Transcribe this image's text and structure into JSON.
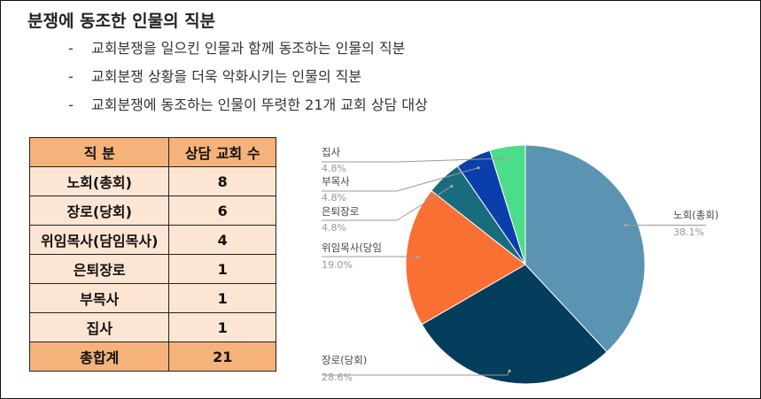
{
  "title": "분쟁에 동조한 인물의 직분",
  "bullets": [
    {
      "marker": "-",
      "text": "교회분쟁을 일으킨 인물과 함께 동조하는 인물의 직분"
    },
    {
      "marker": "-",
      "text": "교회분쟁 상황을 더욱 악화시키는 인물의 직분"
    },
    {
      "marker": "-",
      "text": "교회분쟁에 동조하는 인물이 뚜렷한 21개 교회 상담 대상"
    }
  ],
  "table": {
    "headers": [
      "직 분",
      "상담 교회 수"
    ],
    "rows": [
      [
        "노회(총회)",
        "8"
      ],
      [
        "장로(당회)",
        "6"
      ],
      [
        "위임목사(담임목사)",
        "4"
      ],
      [
        "은퇴장로",
        "1"
      ],
      [
        "부목사",
        "1"
      ],
      [
        "집사",
        "1"
      ]
    ],
    "total": [
      "총합계",
      "21"
    ]
  },
  "chart_data": {
    "type": "pie",
    "slices": [
      {
        "label": "노회(총회)",
        "value": 38.1,
        "pct_label": "38.1%",
        "color": "#5b93b3"
      },
      {
        "label": "장로(당회)",
        "value": 28.6,
        "pct_label": "28.6%",
        "color": "#053d5c"
      },
      {
        "label": "위임목사(당임",
        "value": 19.0,
        "pct_label": "19.0%",
        "color": "#fa7033"
      },
      {
        "label": "은퇴장로",
        "value": 4.8,
        "pct_label": "4.8%",
        "color": "#196c7d"
      },
      {
        "label": "부목사",
        "value": 4.8,
        "pct_label": "4.8%",
        "color": "#0a3fab"
      },
      {
        "label": "집사",
        "value": 4.8,
        "pct_label": "4.8%",
        "color": "#4bdd8a"
      }
    ]
  }
}
